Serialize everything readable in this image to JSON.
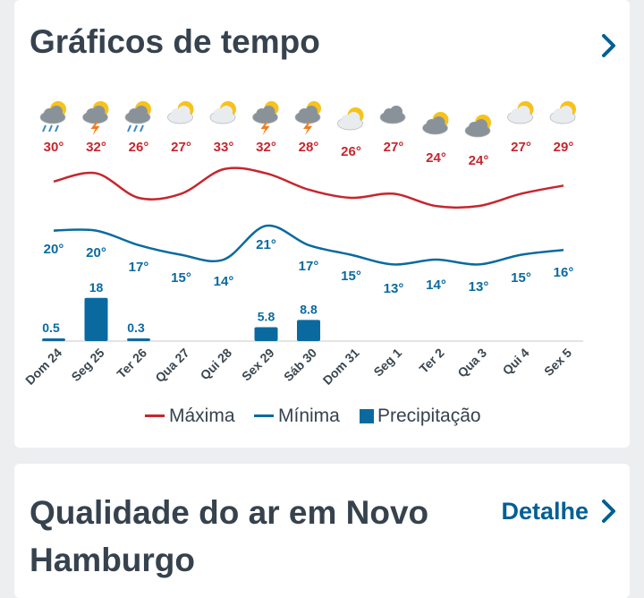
{
  "weather_section": {
    "title": "Gráficos de tempo"
  },
  "air_section": {
    "title": "Qualidade do ar em Novo Hamburgo",
    "detail_label": "Detalhe"
  },
  "colors": {
    "max": "#c6262e",
    "min": "#0a6aa0",
    "precip": "#0a6aa0",
    "title": "#36424e",
    "link": "#005f94"
  },
  "chart_data": {
    "type": "line",
    "categories": [
      "Dom 24",
      "Seg 25",
      "Ter 26",
      "Qua 27",
      "Qui 28",
      "Sex 29",
      "Sáb 30",
      "Dom 31",
      "Seg 1",
      "Ter 2",
      "Qua 3",
      "Qui 4",
      "Sex 5"
    ],
    "icons": [
      "rain-sun-icon",
      "storm-sun-icon",
      "rain-icon",
      "partly-cloudy-icon",
      "partly-cloudy-icon",
      "storm-icon",
      "storm-icon",
      "partly-cloudy-icon",
      "cloudy-icon",
      "cloudy-sun-icon",
      "cloudy-sun-icon",
      "partly-cloudy-icon",
      "partly-cloudy-icon"
    ],
    "series": [
      {
        "name": "Máxima",
        "values": [
          30,
          32,
          26,
          27,
          33,
          32,
          28,
          26,
          27,
          24,
          24,
          27,
          29
        ],
        "labels": [
          "30°",
          "32°",
          "26°",
          "27°",
          "33°",
          "32°",
          "28°",
          "26°",
          "27°",
          "24°",
          "24°",
          "27°",
          "29°"
        ]
      },
      {
        "name": "Mínima",
        "values": [
          20,
          20,
          17,
          15,
          14,
          21,
          17,
          15,
          13,
          14,
          13,
          15,
          16
        ],
        "labels": [
          "20°",
          "20°",
          "17°",
          "15°",
          "14°",
          "21°",
          "17°",
          "15°",
          "13°",
          "14°",
          "13°",
          "15°",
          "16°"
        ]
      },
      {
        "name": "Precipitação",
        "type": "bar",
        "values": [
          0.5,
          18,
          0.3,
          0,
          0,
          5.8,
          8.8,
          0,
          0,
          0,
          0,
          0,
          0
        ],
        "labels": [
          "0.5",
          "18",
          "0.3",
          "",
          "",
          "5.8",
          "8.8",
          "",
          "",
          "",
          "",
          "",
          ""
        ]
      }
    ],
    "legend": [
      "Máxima",
      "Mínima",
      "Precipitação"
    ],
    "legend_position": "bottom"
  }
}
